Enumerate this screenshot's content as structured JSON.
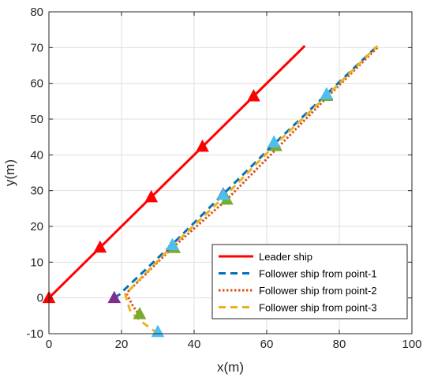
{
  "chart_data": {
    "type": "line",
    "xlabel": "x(m)",
    "ylabel": "y(m)",
    "xlim": [
      0,
      100
    ],
    "ylim": [
      -10,
      80
    ],
    "xticks": [
      0,
      20,
      40,
      60,
      80,
      100
    ],
    "yticks": [
      -10,
      0,
      10,
      20,
      30,
      40,
      50,
      60,
      70,
      80
    ],
    "grid": true,
    "legend_position": "bottom-right",
    "series": [
      {
        "name": "Leader ship",
        "color": "#ff0000",
        "style": "solid",
        "x": [
          0,
          14.1,
          28.2,
          42.3,
          56.4,
          70.5
        ],
        "y": [
          0,
          14.1,
          28.2,
          42.3,
          56.4,
          70.5
        ],
        "markers": [
          [
            0,
            0
          ],
          [
            14.1,
            14.1
          ],
          [
            28.2,
            28.2
          ],
          [
            42.3,
            42.3
          ],
          [
            56.4,
            56.4
          ]
        ],
        "marker_color": "#ff0000"
      },
      {
        "name": "Follower ship from point-1",
        "color": "#0072bd",
        "style": "dashed",
        "x": [
          18,
          19.5,
          21,
          34,
          48,
          62,
          76.5,
          90.5
        ],
        "y": [
          0,
          1,
          2.5,
          15,
          29,
          43,
          57,
          70.5
        ],
        "markers": [
          [
            18,
            0
          ],
          [
            34,
            14.5
          ],
          [
            48,
            29
          ],
          [
            62,
            43.3
          ],
          [
            76.5,
            56.8
          ]
        ],
        "marker_color": "#7e2f8e"
      },
      {
        "name": "Follower ship from point-2",
        "color": "#d95319",
        "style": "dotted",
        "x": [
          25,
          23,
          21.5,
          22,
          34,
          49,
          63,
          77,
          90.5
        ],
        "y": [
          -5,
          -2,
          1,
          2,
          14,
          27.5,
          42,
          56.5,
          70
        ],
        "markers": [
          [
            25,
            -4.5
          ],
          [
            34.5,
            14
          ],
          [
            49,
            27.5
          ],
          [
            62.5,
            42.5
          ],
          [
            76.5,
            56.5
          ]
        ],
        "marker_color": "#77ac30"
      },
      {
        "name": "Follower ship from point-3",
        "color": "#edb120",
        "style": "dashed",
        "x": [
          30,
          26,
          22.5,
          21,
          34,
          48.5,
          62.5,
          77,
          90.5
        ],
        "y": [
          -10,
          -7,
          -4,
          1,
          14.5,
          28.5,
          43,
          57,
          70.5
        ],
        "markers": [
          [
            30,
            -9.5
          ],
          [
            34,
            14.8
          ],
          [
            48,
            28.8
          ],
          [
            62,
            43.5
          ],
          [
            76.5,
            57
          ]
        ],
        "marker_color": "#4dbeee"
      }
    ]
  }
}
